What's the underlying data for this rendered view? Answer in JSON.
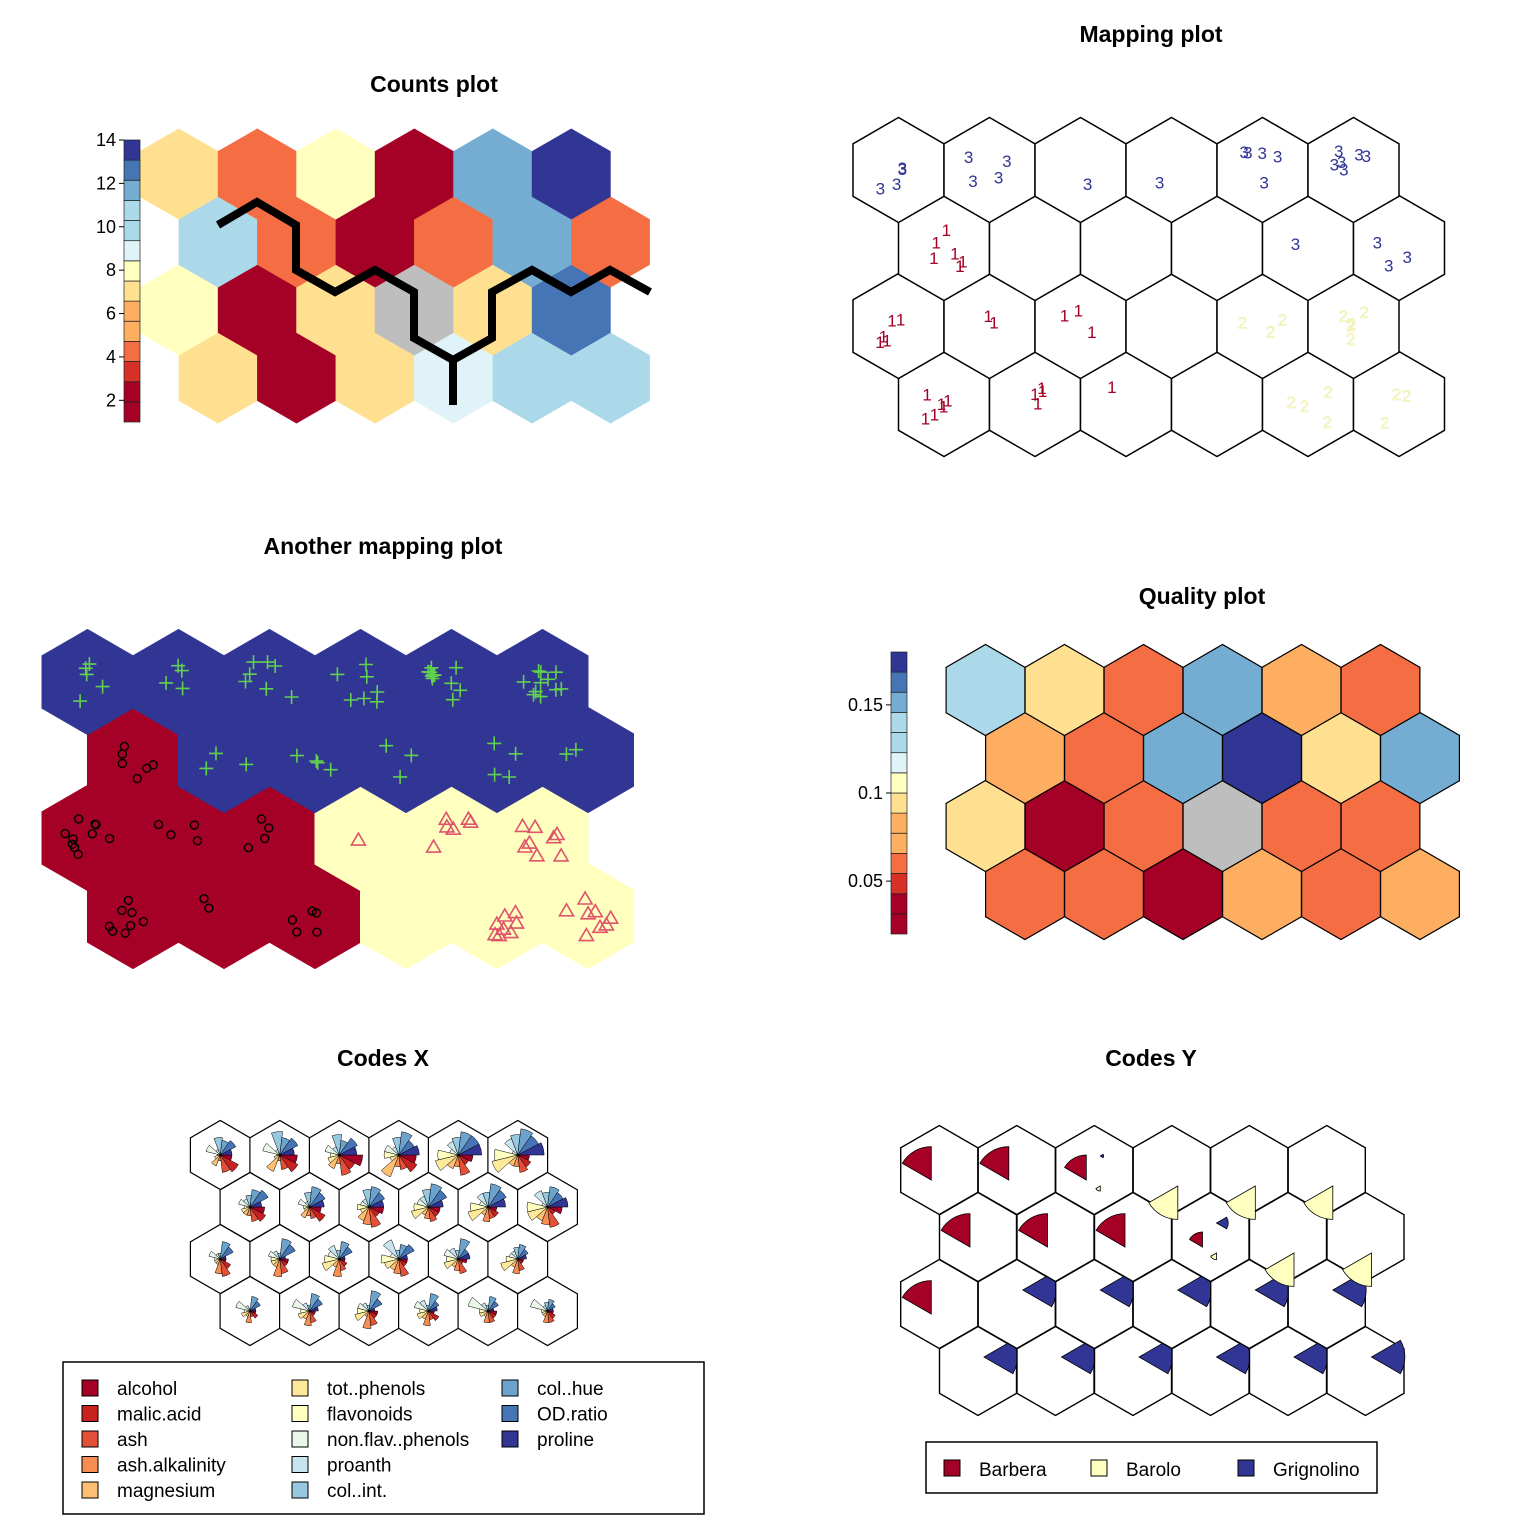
{
  "colors": {
    "scale": [
      "#a50026",
      "#d73027",
      "#f46d43",
      "#fdae61",
      "#fee090",
      "#ffffbf",
      "#e0f3f8",
      "#abd9e9",
      "#74add1",
      "#4575b4",
      "#313695"
    ],
    "empty": "#bebebe",
    "barbera": "#a50026",
    "barolo": "#ffffbf",
    "grignolino": "#313695",
    "green": "#61d04f",
    "pink": "#df536b",
    "black": "#000000"
  },
  "chart_data": [
    {
      "id": "counts",
      "type": "heatmap",
      "title": "Counts plot",
      "grid": {
        "rows": 4,
        "cols": 6,
        "topology": "hexagonal"
      },
      "values": [
        [
          6,
          1,
          6,
          9,
          10,
          10
        ],
        [
          7,
          1,
          6,
          0,
          6,
          13
        ],
        [
          10,
          4,
          1,
          4,
          12,
          3
        ],
        [
          6,
          4,
          8,
          1,
          11,
          14
        ]
      ],
      "colorbar": {
        "ticks": [
          2,
          4,
          6,
          8,
          10,
          12,
          14
        ],
        "range": [
          1,
          14
        ]
      }
    },
    {
      "id": "mapping",
      "type": "scatter",
      "title": "Mapping plot",
      "grid": {
        "rows": 4,
        "cols": 6,
        "topology": "hexagonal"
      },
      "labels": [
        [
          "1",
          "1",
          "1",
          "",
          "2",
          "2"
        ],
        [
          "1",
          "1",
          "1",
          "",
          "2",
          "2"
        ],
        [
          "1",
          "3",
          "3",
          "3",
          "3",
          "3"
        ],
        [
          "3",
          "3",
          "3",
          "3",
          "3",
          "3"
        ]
      ],
      "counts": [
        [
          6,
          4,
          1,
          0,
          4,
          3
        ],
        [
          5,
          2,
          3,
          0,
          3,
          5
        ],
        [
          6,
          0,
          0,
          0,
          1,
          3
        ],
        [
          4,
          4,
          1,
          1,
          5,
          6
        ]
      ],
      "class_colors": {
        "1": "#a50026",
        "2": "#ffffbf",
        "3": "#313695"
      }
    },
    {
      "id": "another",
      "type": "scatter",
      "title": "Another mapping plot",
      "grid": {
        "rows": 4,
        "cols": 6,
        "topology": "hexagonal"
      },
      "cluster": [
        [
          0,
          0,
          0,
          1,
          1,
          1
        ],
        [
          0,
          0,
          0,
          1,
          1,
          1
        ],
        [
          0,
          2,
          2,
          2,
          2,
          2
        ],
        [
          2,
          2,
          2,
          2,
          2,
          2
        ]
      ],
      "counts": [
        [
          8,
          2,
          5,
          0,
          8,
          8
        ],
        [
          10,
          4,
          4,
          1,
          6,
          8
        ],
        [
          6,
          3,
          4,
          3,
          4,
          2
        ],
        [
          5,
          4,
          7,
          7,
          12,
          11
        ]
      ]
    },
    {
      "id": "quality",
      "type": "heatmap",
      "title": "Quality plot",
      "grid": {
        "rows": 4,
        "cols": 6,
        "topology": "hexagonal"
      },
      "values": [
        [
          0.058,
          0.058,
          0.025,
          0.065,
          0.058,
          0.07
        ],
        [
          0.085,
          0.025,
          0.06,
          null,
          0.06,
          0.045
        ],
        [
          0.07,
          0.058,
          0.14,
          0.178,
          0.08,
          0.15
        ],
        [
          0.125,
          0.083,
          0.058,
          0.155,
          0.065,
          0.045
        ]
      ],
      "colorbar": {
        "ticks": [
          0.05,
          0.1,
          0.15
        ],
        "range": [
          0.02,
          0.18
        ]
      }
    },
    {
      "id": "codesx",
      "type": "pie",
      "title": "Codes X",
      "grid": {
        "rows": 4,
        "cols": 6,
        "topology": "hexagonal"
      },
      "variables": [
        "alcohol",
        "malic.acid",
        "ash",
        "ash.alkalinity",
        "magnesium",
        "tot..phenols",
        "flavonoids",
        "non.flav..phenols",
        "proanth",
        "col..int.",
        "col..hue",
        "OD.ratio",
        "proline"
      ],
      "codes": [
        [
          [
            0.4,
            0.7,
            0.6,
            0.2,
            0.4,
            0.2,
            0.1,
            0.5,
            0.2,
            0.6,
            0.5,
            0.6,
            0.4
          ],
          [
            0.6,
            0.7,
            0.5,
            0.2,
            0.6,
            0.2,
            0.1,
            0.6,
            0.2,
            0.8,
            0.6,
            0.7,
            0.5
          ],
          [
            0.8,
            0.6,
            0.7,
            0.3,
            0.5,
            0.4,
            0.3,
            0.5,
            0.3,
            0.7,
            0.5,
            0.7,
            0.6
          ],
          [
            0.6,
            0.7,
            0.5,
            0.4,
            0.8,
            0.3,
            0.5,
            0.5,
            0.3,
            0.6,
            0.8,
            0.6,
            0.7
          ],
          [
            0.5,
            0.4,
            0.7,
            0.4,
            0.5,
            0.8,
            0.7,
            0.3,
            0.5,
            0.6,
            0.8,
            0.8,
            0.8
          ],
          [
            0.4,
            0.5,
            0.6,
            0.4,
            0.4,
            0.9,
            0.8,
            0.2,
            0.6,
            0.7,
            0.9,
            0.8,
            0.9
          ]
        ],
        [
          [
            0.5,
            0.6,
            0.5,
            0.3,
            0.3,
            0.3,
            0.2,
            0.4,
            0.3,
            0.4,
            0.6,
            0.7,
            0.4
          ],
          [
            0.4,
            0.6,
            0.4,
            0.3,
            0.4,
            0.2,
            0.2,
            0.4,
            0.2,
            0.5,
            0.7,
            0.6,
            0.5
          ],
          [
            0.5,
            0.4,
            0.7,
            0.6,
            0.5,
            0.3,
            0.4,
            0.3,
            0.3,
            0.6,
            0.7,
            0.6,
            0.5
          ],
          [
            0.4,
            0.4,
            0.5,
            0.4,
            0.3,
            0.6,
            0.5,
            0.4,
            0.4,
            0.6,
            0.8,
            0.7,
            0.5
          ],
          [
            0.3,
            0.4,
            0.4,
            0.5,
            0.3,
            0.7,
            0.6,
            0.3,
            0.5,
            0.5,
            0.8,
            0.7,
            0.6
          ],
          [
            0.5,
            0.3,
            0.7,
            0.6,
            0.5,
            0.7,
            0.7,
            0.2,
            0.6,
            0.5,
            0.7,
            0.6,
            0.7
          ]
        ],
        [
          [
            0.2,
            0.4,
            0.6,
            0.5,
            0.2,
            0.2,
            0.2,
            0.4,
            0.2,
            0.2,
            0.6,
            0.5,
            0.2
          ],
          [
            0.3,
            0.3,
            0.5,
            0.6,
            0.3,
            0.3,
            0.3,
            0.4,
            0.3,
            0.2,
            0.7,
            0.6,
            0.2
          ],
          [
            0.2,
            0.3,
            0.4,
            0.6,
            0.3,
            0.6,
            0.5,
            0.4,
            0.5,
            0.3,
            0.6,
            0.5,
            0.2
          ],
          [
            0.3,
            0.3,
            0.6,
            0.5,
            0.4,
            0.5,
            0.6,
            0.3,
            0.7,
            0.3,
            0.5,
            0.6,
            0.3
          ],
          [
            0.3,
            0.2,
            0.5,
            0.4,
            0.3,
            0.5,
            0.4,
            0.5,
            0.4,
            0.3,
            0.7,
            0.4,
            0.4
          ],
          [
            0.2,
            0.2,
            0.4,
            0.5,
            0.3,
            0.6,
            0.4,
            0.3,
            0.3,
            0.4,
            0.5,
            0.4,
            0.3
          ]
        ],
        [
          [
            0.2,
            0.3,
            0.2,
            0.4,
            0.2,
            0.3,
            0.2,
            0.5,
            0.2,
            0.1,
            0.5,
            0.4,
            0.2
          ],
          [
            0.2,
            0.2,
            0.4,
            0.5,
            0.3,
            0.4,
            0.3,
            0.6,
            0.3,
            0.2,
            0.6,
            0.5,
            0.3
          ],
          [
            0.3,
            0.3,
            0.5,
            0.6,
            0.2,
            0.5,
            0.4,
            0.4,
            0.3,
            0.2,
            0.7,
            0.5,
            0.2
          ],
          [
            0.2,
            0.4,
            0.3,
            0.5,
            0.3,
            0.4,
            0.3,
            0.5,
            0.4,
            0.2,
            0.6,
            0.4,
            0.3
          ],
          [
            0.3,
            0.3,
            0.4,
            0.4,
            0.2,
            0.3,
            0.3,
            0.7,
            0.3,
            0.2,
            0.5,
            0.4,
            0.2
          ],
          [
            0.2,
            0.3,
            0.4,
            0.4,
            0.2,
            0.2,
            0.2,
            0.6,
            0.2,
            0.3,
            0.4,
            0.3,
            0.2
          ]
        ]
      ]
    },
    {
      "id": "codesy",
      "type": "pie",
      "title": "Codes Y",
      "grid": {
        "rows": 4,
        "cols": 6,
        "topology": "hexagonal"
      },
      "classes": [
        "Barbera",
        "Barolo",
        "Grignolino"
      ],
      "codes": [
        [
          [
            1,
            0,
            0
          ],
          [
            1,
            0,
            0
          ],
          [
            0.75,
            0.15,
            0.1
          ],
          [
            0,
            1,
            0
          ],
          [
            0,
            1,
            0
          ],
          [
            0,
            1,
            0
          ]
        ],
        [
          [
            1,
            0,
            0
          ],
          [
            1,
            0,
            0
          ],
          [
            1,
            0,
            0
          ],
          [
            0.45,
            0.2,
            0.35
          ],
          [
            0,
            1,
            0
          ],
          [
            0,
            1,
            0
          ]
        ],
        [
          [
            1,
            0,
            0
          ],
          [
            0,
            0,
            1
          ],
          [
            0,
            0,
            1
          ],
          [
            0,
            0,
            1
          ],
          [
            0,
            0,
            1
          ],
          [
            0,
            0,
            1
          ]
        ],
        [
          [
            0,
            0,
            1
          ],
          [
            0,
            0,
            1
          ],
          [
            0,
            0,
            1
          ],
          [
            0,
            0,
            1
          ],
          [
            0,
            0,
            1
          ],
          [
            0,
            0,
            1
          ]
        ]
      ]
    }
  ],
  "legend_x": {
    "items": [
      "alcohol",
      "malic.acid",
      "ash",
      "ash.alkalinity",
      "magnesium",
      "tot..phenols",
      "flavonoids",
      "non.flav..phenols",
      "proanth",
      "col..int.",
      "col..hue",
      "OD.ratio",
      "proline"
    ]
  },
  "legend_y": {
    "items": [
      "Barbera",
      "Barolo",
      "Grignolino"
    ]
  }
}
